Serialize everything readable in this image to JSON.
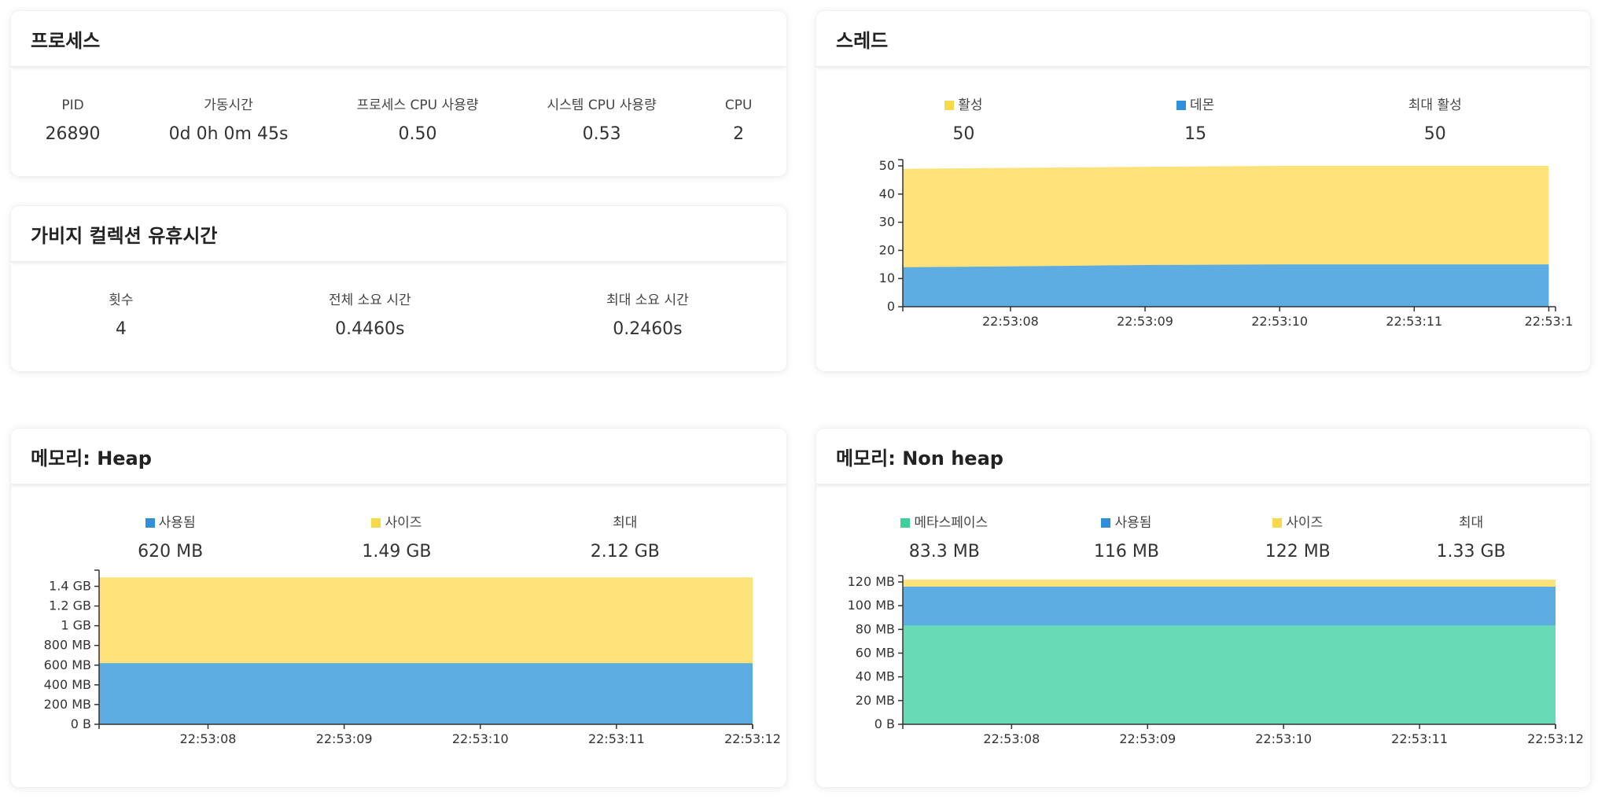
{
  "colors": {
    "yellow": "#FDE27A",
    "blue": "#5DACE2",
    "teal": "#68DBB6",
    "swatch_yellow": "#F7D94C",
    "swatch_blue": "#2F8FD8",
    "swatch_teal": "#3FCF9A"
  },
  "process": {
    "title": "프로세스",
    "stats": [
      {
        "label": "PID",
        "value": "26890"
      },
      {
        "label": "가동시간",
        "value": "0d 0h 0m 45s"
      },
      {
        "label": "프로세스 CPU 사용량",
        "value": "0.50"
      },
      {
        "label": "시스템 CPU 사용량",
        "value": "0.53"
      },
      {
        "label": "CPU",
        "value": "2"
      }
    ]
  },
  "gc": {
    "title": "가비지 컬렉션 유휴시간",
    "stats": [
      {
        "label": "횟수",
        "value": "4"
      },
      {
        "label": "전체 소요 시간",
        "value": "0.4460s"
      },
      {
        "label": "최대 소요 시간",
        "value": "0.2460s"
      }
    ]
  },
  "threads": {
    "title": "스레드",
    "legend": [
      {
        "label": "활성",
        "value": "50",
        "swatch": "yellow"
      },
      {
        "label": "데몬",
        "value": "15",
        "swatch": "blue"
      },
      {
        "label": "최대 활성",
        "value": "50",
        "swatch": ""
      }
    ]
  },
  "heap": {
    "title": "메모리: Heap",
    "legend": [
      {
        "label": "사용됨",
        "value": "620 MB",
        "swatch": "blue"
      },
      {
        "label": "사이즈",
        "value": "1.49 GB",
        "swatch": "yellow"
      },
      {
        "label": "최대",
        "value": "2.12 GB",
        "swatch": ""
      }
    ]
  },
  "nonheap": {
    "title": "메모리: Non heap",
    "legend": [
      {
        "label": "메타스페이스",
        "value": "83.3 MB",
        "swatch": "teal"
      },
      {
        "label": "사용됨",
        "value": "116 MB",
        "swatch": "blue"
      },
      {
        "label": "사이즈",
        "value": "122 MB",
        "swatch": "yellow"
      },
      {
        "label": "최대",
        "value": "1.33 GB",
        "swatch": ""
      }
    ]
  },
  "chart_data": [
    {
      "id": "threads",
      "type": "area",
      "x": [
        "22:53:07.2",
        "22:53:08",
        "22:53:09",
        "22:53:10",
        "22:53:11",
        "22:53:12"
      ],
      "series": [
        {
          "name": "데몬",
          "color": "blue",
          "values": [
            14,
            14.3,
            14.8,
            15,
            15,
            15
          ]
        },
        {
          "name": "활성",
          "color": "yellow",
          "values": [
            49,
            49.3,
            49.7,
            50,
            50,
            50
          ]
        }
      ],
      "ylim": [
        0,
        50
      ],
      "yticks": [
        0,
        10,
        20,
        30,
        40,
        50
      ],
      "ytick_labels": [
        "0",
        "10",
        "20",
        "30",
        "40",
        "50"
      ],
      "xtick_labels": [
        "22:53:08",
        "22:53:09",
        "22:53:10",
        "22:53:11",
        "22:53:1"
      ]
    },
    {
      "id": "heap",
      "type": "area",
      "x": [
        "22:53:07.2",
        "22:53:08",
        "22:53:09",
        "22:53:10",
        "22:53:11",
        "22:53:12"
      ],
      "series": [
        {
          "name": "사용됨",
          "color": "blue",
          "values": [
            620,
            620,
            620,
            620,
            620,
            620
          ]
        },
        {
          "name": "사이즈",
          "color": "yellow",
          "values": [
            1490,
            1490,
            1490,
            1490,
            1490,
            1490
          ]
        }
      ],
      "unit": "MB",
      "ylim": [
        0,
        1500
      ],
      "yticks": [
        0,
        200,
        400,
        600,
        800,
        1000,
        1200,
        1400
      ],
      "ytick_labels": [
        "0 B",
        "200 MB",
        "400 MB",
        "600 MB",
        "800 MB",
        "1 GB",
        "1.2 GB",
        "1.4 GB"
      ],
      "xtick_labels": [
        "22:53:08",
        "22:53:09",
        "22:53:10",
        "22:53:11",
        "22:53:12"
      ]
    },
    {
      "id": "nonheap",
      "type": "area",
      "x": [
        "22:53:07.2",
        "22:53:08",
        "22:53:09",
        "22:53:10",
        "22:53:11",
        "22:53:12"
      ],
      "series": [
        {
          "name": "메타스페이스",
          "color": "teal",
          "values": [
            83.3,
            83.3,
            83.3,
            83.3,
            83.3,
            83.3
          ]
        },
        {
          "name": "사용됨",
          "color": "blue",
          "values": [
            116,
            116,
            116,
            116,
            116,
            116
          ]
        },
        {
          "name": "사이즈",
          "color": "yellow",
          "values": [
            122,
            122,
            122,
            122,
            122,
            122
          ]
        }
      ],
      "unit": "MB",
      "ylim": [
        0,
        120
      ],
      "yticks": [
        0,
        20,
        40,
        60,
        80,
        100,
        120
      ],
      "ytick_labels": [
        "0 B",
        "20 MB",
        "40 MB",
        "60 MB",
        "80 MB",
        "100 MB",
        "120 MB"
      ],
      "xtick_labels": [
        "22:53:08",
        "22:53:09",
        "22:53:10",
        "22:53:11",
        "22:53:12"
      ]
    }
  ]
}
